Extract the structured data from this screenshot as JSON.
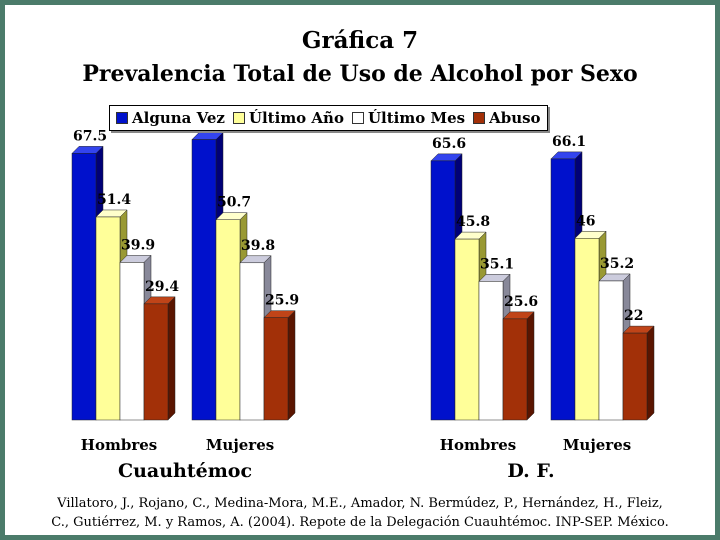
{
  "colors": {
    "background": "#4b7b6a"
  },
  "chart_data": {
    "type": "bar",
    "title": "Gráfica 7",
    "subtitle": "Prevalencia Total de Uso de Alcohol por Sexo",
    "legend_position": "top",
    "grid": false,
    "ylim": [
      0,
      80
    ],
    "series": [
      {
        "name": "Alguna Vez",
        "color": "#0011cc",
        "side": "#000077",
        "top": "#3344ee"
      },
      {
        "name": "Último Año",
        "color": "#ffff99",
        "side": "#999933",
        "top": "#ffffcc"
      },
      {
        "name": "Último Mes",
        "color": "#ffffff",
        "side": "#888899",
        "top": "#ccccdd"
      },
      {
        "name": "Abuso",
        "color": "#a23008",
        "side": "#5a1500",
        "top": "#c04418"
      }
    ],
    "groups": [
      {
        "name": "Cuauhtémoc",
        "categories": [
          {
            "label": "Hombres",
            "values": [
              67.5,
              51.4,
              39.9,
              29.4
            ]
          },
          {
            "label": "Mujeres",
            "values": [
              71,
              50.7,
              39.8,
              25.9
            ]
          }
        ]
      },
      {
        "name": "D. F.",
        "categories": [
          {
            "label": "Hombres",
            "values": [
              65.6,
              45.8,
              35.1,
              25.6
            ]
          },
          {
            "label": "Mujeres",
            "values": [
              66.1,
              46,
              35.2,
              22
            ]
          }
        ]
      }
    ]
  },
  "citation": {
    "line1": "Villatoro, J., Rojano, C., Medina-Mora, M.E., Amador, N. Bermúdez, P., Hernández, H., Fleiz,",
    "line2": "C., Gutiérrez, M. y Ramos, A. (2004). Repote de la Delegación Cuauhtémoc. INP-SEP. México."
  }
}
